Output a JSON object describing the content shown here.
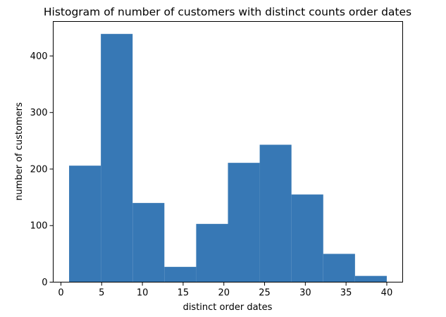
{
  "chart_data": {
    "type": "bar",
    "title": "Histogram of number of customers with distinct counts order dates",
    "xlabel": "distinct order dates",
    "ylabel": "number of customers",
    "bin_edges": [
      1,
      4.9,
      8.8,
      12.7,
      16.6,
      20.5,
      24.4,
      28.3,
      32.2,
      36.1,
      40
    ],
    "values": [
      206,
      439,
      140,
      27,
      103,
      211,
      243,
      155,
      50,
      11
    ],
    "xlim": [
      -0.95,
      41.95
    ],
    "ylim": [
      0,
      461
    ],
    "xticks": [
      0,
      5,
      10,
      15,
      20,
      25,
      30,
      35,
      40
    ],
    "yticks": [
      0,
      100,
      200,
      300,
      400
    ],
    "bar_color": "#3778b5",
    "grid": false,
    "legend": "none"
  }
}
